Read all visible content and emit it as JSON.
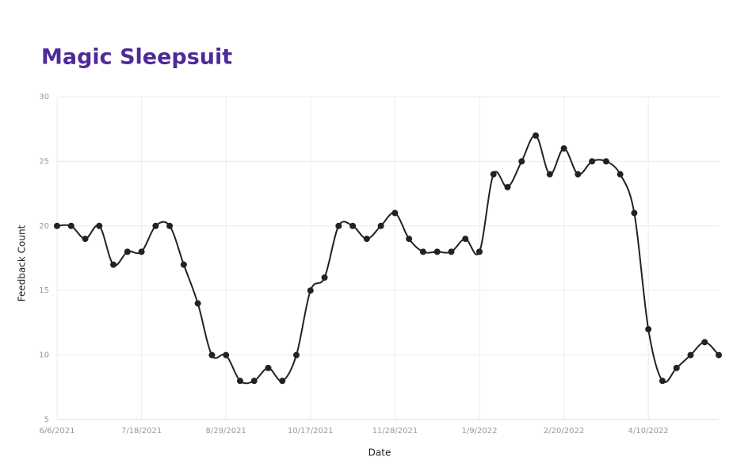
{
  "chart_data": {
    "type": "line",
    "title": "Magic Sleepsuit",
    "x_label": "Date",
    "y_label": "Feedback Count",
    "categories": [
      "6/6/2021",
      null,
      null,
      null,
      null,
      null,
      "7/18/2021",
      null,
      null,
      null,
      null,
      null,
      "8/29/2021",
      null,
      null,
      null,
      null,
      null,
      "10/17/2021",
      null,
      null,
      null,
      null,
      null,
      "11/28/2021",
      null,
      null,
      null,
      null,
      null,
      "1/9/2022",
      null,
      null,
      null,
      null,
      null,
      "2/20/2022",
      null,
      null,
      null,
      null,
      null,
      "4/10/2022",
      null,
      null,
      null,
      null,
      null
    ],
    "series": [
      {
        "name": "Feedback Count",
        "color": "#222222",
        "values": [
          20,
          20,
          19,
          20,
          17,
          18,
          18,
          20,
          20,
          17,
          14,
          10,
          10,
          8,
          8,
          9,
          8,
          10,
          15,
          16,
          20,
          20,
          19,
          20,
          21,
          19,
          18,
          18,
          18,
          19,
          18,
          24,
          23,
          25,
          27,
          24,
          26,
          24,
          25,
          25,
          24,
          21,
          12,
          8,
          9,
          10,
          11,
          10
        ]
      }
    ],
    "ylim": [
      5,
      30
    ],
    "yticks": [
      5,
      10,
      15,
      20,
      25,
      30
    ],
    "grid": true
  }
}
